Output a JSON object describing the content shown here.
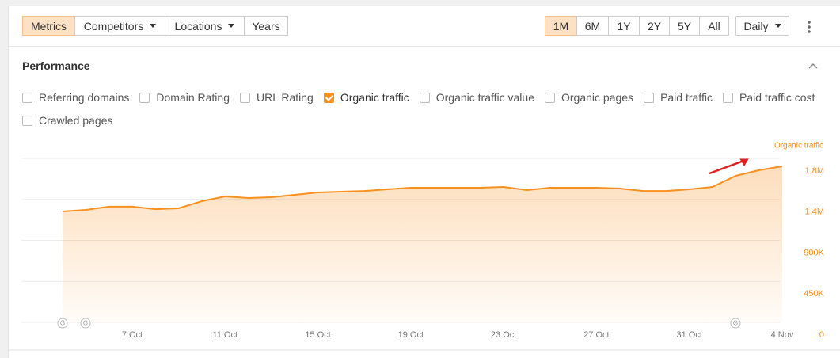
{
  "toolbar": {
    "filters": [
      "Metrics",
      "Competitors",
      "Locations",
      "Years"
    ],
    "dropdown_filters": [
      false,
      true,
      true,
      false
    ],
    "active_filter": 0,
    "periods": [
      "1M",
      "6M",
      "1Y",
      "2Y",
      "5Y",
      "All"
    ],
    "active_period": 0,
    "granularity": "Daily"
  },
  "panel": {
    "title": "Performance",
    "metrics": [
      {
        "label": "Referring domains",
        "checked": false
      },
      {
        "label": "Domain Rating",
        "checked": false
      },
      {
        "label": "URL Rating",
        "checked": false
      },
      {
        "label": "Organic traffic",
        "checked": true
      },
      {
        "label": "Organic traffic value",
        "checked": false
      },
      {
        "label": "Organic pages",
        "checked": false
      },
      {
        "label": "Paid traffic",
        "checked": false
      },
      {
        "label": "Paid traffic cost",
        "checked": false
      },
      {
        "label": "Crawled pages",
        "checked": false
      }
    ]
  },
  "chart_data": {
    "type": "area",
    "categories": [
      null,
      null,
      null,
      "7 Oct",
      null,
      null,
      null,
      "11 Oct",
      null,
      null,
      null,
      "15 Oct",
      null,
      null,
      null,
      "19 Oct",
      null,
      null,
      null,
      "23 Oct",
      null,
      null,
      null,
      "27 Oct",
      null,
      null,
      null,
      "31 Oct",
      null,
      null,
      null,
      "4 Nov"
    ],
    "series": [
      {
        "name": "Organic traffic",
        "color": "#f7901e",
        "values": [
          1217000,
          1235000,
          1270000,
          1270000,
          1243000,
          1252000,
          1330000,
          1383000,
          1365000,
          1374000,
          1400000,
          1426000,
          1435000,
          1443000,
          1461000,
          1478000,
          1478000,
          1478000,
          1478000,
          1487000,
          1452000,
          1478000,
          1478000,
          1478000,
          1470000,
          1443000,
          1443000,
          1461000,
          1487000,
          1609000,
          1670000,
          1713000
        ]
      }
    ],
    "ylim": [
      0,
      1800000
    ],
    "yticks": [
      0,
      {
        "value": 450000,
        "label": "450K"
      },
      {
        "value": 900000,
        "label": "900K"
      },
      {
        "value": 1350000,
        "label": "1.4M"
      },
      {
        "value": 1800000,
        "label": "1.8M"
      }
    ],
    "grid": true
  }
}
